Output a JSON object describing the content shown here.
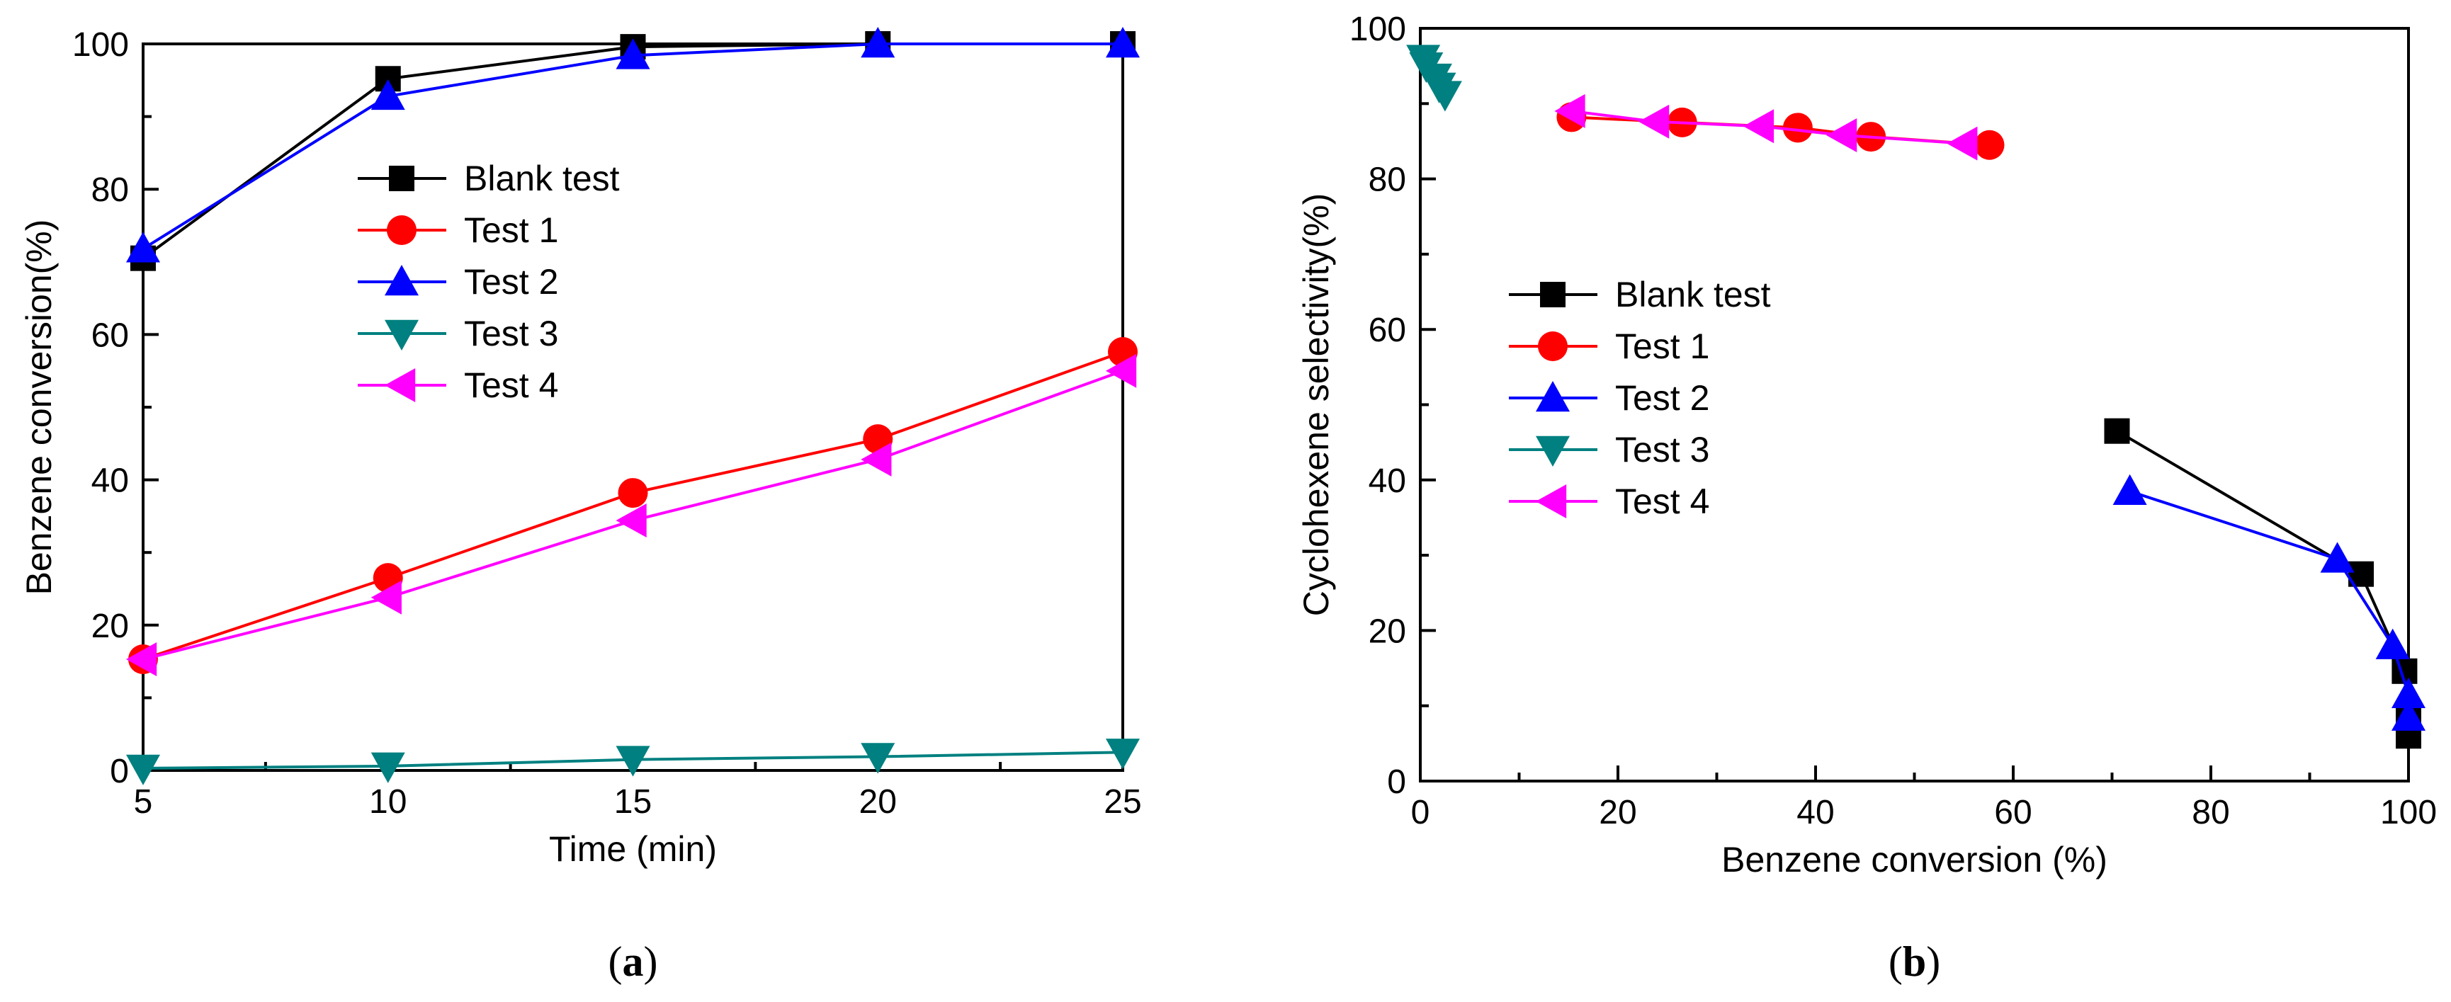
{
  "chart_data": [
    {
      "type": "line",
      "panel_label": "a",
      "xlabel": "Time (min)",
      "ylabel": "Benzene conversion(%)",
      "xlim": [
        5,
        25
      ],
      "ylim": [
        0,
        100
      ],
      "xticks": [
        5,
        10,
        15,
        20,
        25
      ],
      "yticks": [
        0,
        20,
        40,
        60,
        80,
        100
      ],
      "grid": false,
      "legend": "center-left",
      "series": [
        {
          "name": "Blank test",
          "color": "#000000",
          "marker": "square",
          "x": [
            5,
            10,
            15,
            20,
            25
          ],
          "y": [
            70.5,
            95.2,
            99.6,
            100,
            100
          ]
        },
        {
          "name": "Test 1",
          "color": "#ff0000",
          "marker": "circle",
          "x": [
            5,
            10,
            15,
            20,
            25
          ],
          "y": [
            15.3,
            26.5,
            38.2,
            45.6,
            57.6
          ]
        },
        {
          "name": "Test 2",
          "color": "#0000ff",
          "marker": "triangle-up",
          "x": [
            5,
            10,
            15,
            20,
            25
          ],
          "y": [
            71.8,
            92.8,
            98.4,
            100,
            100
          ]
        },
        {
          "name": "Test 3",
          "color": "#008080",
          "marker": "triangle-down",
          "x": [
            5,
            10,
            15,
            20,
            25
          ],
          "y": [
            0.3,
            0.6,
            1.5,
            1.9,
            2.5
          ]
        },
        {
          "name": "Test 4",
          "color": "#ff00ff",
          "marker": "triangle-left",
          "x": [
            5,
            10,
            15,
            20,
            25
          ],
          "y": [
            15.3,
            23.8,
            34.4,
            42.8,
            55.0
          ]
        }
      ]
    },
    {
      "type": "line",
      "panel_label": "b",
      "xlabel": "Benzene conversion (%)",
      "ylabel": "Cyclohexene selectivity(%)",
      "xlim": [
        0,
        100
      ],
      "ylim": [
        0,
        100
      ],
      "xticks": [
        0,
        20,
        40,
        60,
        80,
        100
      ],
      "yticks": [
        0,
        20,
        40,
        60,
        80,
        100
      ],
      "grid": false,
      "legend": "center-left",
      "series": [
        {
          "name": "Blank test",
          "color": "#000000",
          "marker": "square",
          "x": [
            70.5,
            95.2,
            99.6,
            100,
            100
          ],
          "y": [
            46.5,
            27.5,
            14.6,
            8.0,
            6.0
          ]
        },
        {
          "name": "Test 1",
          "color": "#ff0000",
          "marker": "circle",
          "x": [
            15.3,
            26.5,
            38.2,
            45.6,
            57.6
          ],
          "y": [
            88.2,
            87.5,
            86.8,
            85.6,
            84.5
          ]
        },
        {
          "name": "Test 2",
          "color": "#0000ff",
          "marker": "triangle-up",
          "x": [
            71.8,
            92.8,
            98.4,
            100,
            100
          ],
          "y": [
            38.5,
            29.5,
            18.0,
            11.5,
            8.5
          ]
        },
        {
          "name": "Test 3",
          "color": "#008080",
          "marker": "triangle-down",
          "x": [
            0.3,
            0.6,
            1.5,
            1.9,
            2.5
          ],
          "y": [
            96.0,
            95.0,
            93.5,
            92.3,
            91.2
          ]
        },
        {
          "name": "Test 4",
          "color": "#ff00ff",
          "marker": "triangle-left",
          "x": [
            15.3,
            23.8,
            34.4,
            42.8,
            55.0
          ],
          "y": [
            89.0,
            87.6,
            87.0,
            85.8,
            84.7
          ]
        }
      ]
    }
  ]
}
